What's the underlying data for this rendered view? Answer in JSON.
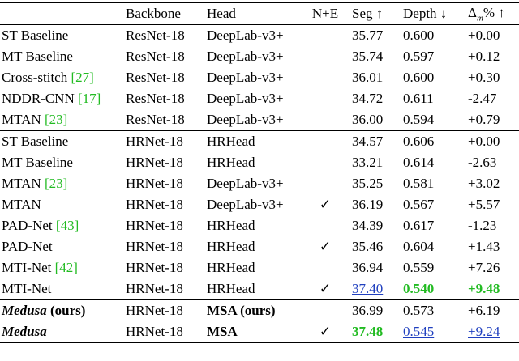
{
  "table": {
    "header": {
      "method": "",
      "backbone": "Backbone",
      "head": "Head",
      "ne": "N+E",
      "seg": "Seg ↑",
      "depth": "Depth ↓",
      "delta": {
        "symbol": "Δ",
        "sub": "m",
        "suffix": "% ↑"
      }
    },
    "rows": [
      {
        "method": "ST Baseline",
        "cite": null,
        "note": null,
        "backbone": "ResNet-18",
        "head": "DeepLab-v3+",
        "ne": null,
        "seg": "35.77",
        "depth": "0.600",
        "delta": "+0.00"
      },
      {
        "method": "MT Baseline",
        "cite": null,
        "note": null,
        "backbone": "ResNet-18",
        "head": "DeepLab-v3+",
        "ne": null,
        "seg": "35.74",
        "depth": "0.597",
        "delta": "+0.12"
      },
      {
        "method": "Cross-stitch",
        "cite": "[27]",
        "note": null,
        "backbone": "ResNet-18",
        "head": "DeepLab-v3+",
        "ne": null,
        "seg": "36.01",
        "depth": "0.600",
        "delta": "+0.30"
      },
      {
        "method": "NDDR-CNN",
        "cite": "[17]",
        "note": null,
        "backbone": "ResNet-18",
        "head": "DeepLab-v3+",
        "ne": null,
        "seg": "34.72",
        "depth": "0.611",
        "delta": "-2.47"
      },
      {
        "method": "MTAN",
        "cite": "[23]",
        "note": null,
        "backbone": "ResNet-18",
        "head": "DeepLab-v3+",
        "ne": null,
        "seg": "36.00",
        "depth": "0.594",
        "delta": "+0.79"
      },
      {
        "method": "ST Baseline",
        "cite": null,
        "note": null,
        "backbone": "HRNet-18",
        "head": "HRHead",
        "ne": null,
        "seg": "34.57",
        "depth": "0.606",
        "delta": "+0.00"
      },
      {
        "method": "MT Baseline",
        "cite": null,
        "note": null,
        "backbone": "HRNet-18",
        "head": "HRHead",
        "ne": null,
        "seg": "33.21",
        "depth": "0.614",
        "delta": "-2.63"
      },
      {
        "method": "MTAN",
        "cite": "[23]",
        "note": null,
        "backbone": "HRNet-18",
        "head": "DeepLab-v3+",
        "ne": null,
        "seg": "35.25",
        "depth": "0.581",
        "delta": "+3.02"
      },
      {
        "method": "MTAN",
        "cite": null,
        "note": null,
        "backbone": "HRNet-18",
        "head": "DeepLab-v3+",
        "ne": "✓",
        "seg": "36.19",
        "depth": "0.567",
        "delta": "+5.57"
      },
      {
        "method": "PAD-Net",
        "cite": "[43]",
        "note": null,
        "backbone": "HRNet-18",
        "head": "HRHead",
        "ne": null,
        "seg": "34.39",
        "depth": "0.617",
        "delta": "-1.23"
      },
      {
        "method": "PAD-Net",
        "cite": null,
        "note": null,
        "backbone": "HRNet-18",
        "head": "HRHead",
        "ne": "✓",
        "seg": "35.46",
        "depth": "0.604",
        "delta": "+1.43"
      },
      {
        "method": "MTI-Net",
        "cite": "[42]",
        "note": null,
        "backbone": "HRNet-18",
        "head": "HRHead",
        "ne": null,
        "seg": "36.94",
        "depth": "0.559",
        "delta": "+7.26"
      },
      {
        "method": "MTI-Net",
        "cite": null,
        "note": null,
        "backbone": "HRNet-18",
        "head": "HRHead",
        "ne": "✓",
        "seg": "37.40",
        "depth": "0.540",
        "delta": "+9.48"
      },
      {
        "method": "Medusa",
        "cite": null,
        "note": "(ours)",
        "backbone": "HRNet-18",
        "head": "MSA (ours)",
        "ne": null,
        "seg": "36.99",
        "depth": "0.573",
        "delta": "+6.19"
      },
      {
        "method": "Medusa",
        "cite": null,
        "note": null,
        "backbone": "HRNet-18",
        "head": "MSA",
        "ne": "✓",
        "seg": "37.48",
        "depth": "0.545",
        "delta": "+9.24"
      }
    ]
  }
}
